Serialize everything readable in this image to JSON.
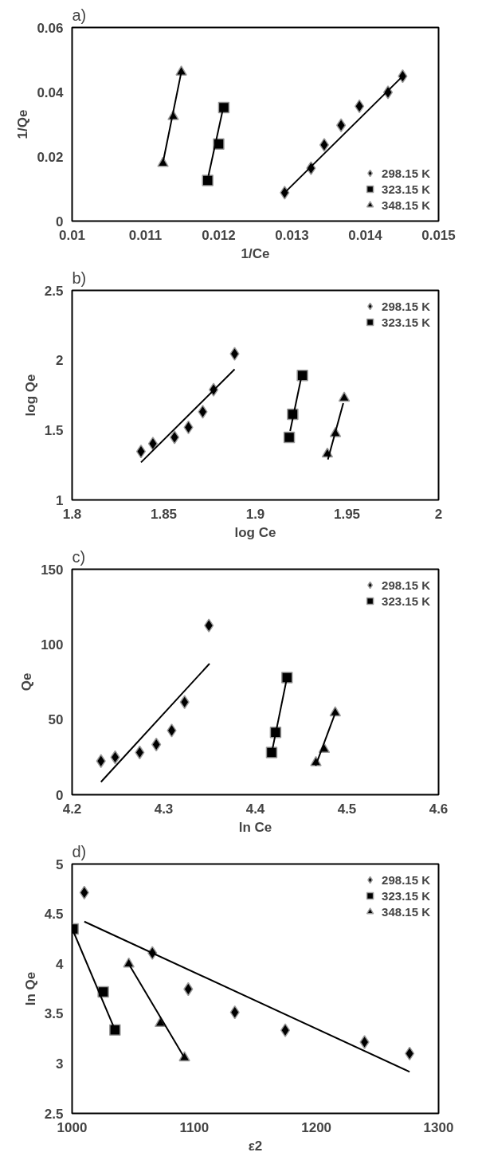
{
  "chart_data": [
    {
      "type": "scatter",
      "title": "a)",
      "xlabel": "1/Ce",
      "ylabel": "1/Qe",
      "xlim": [
        0.01,
        0.015
      ],
      "ylim": [
        0,
        0.06
      ],
      "xticks": [
        0.01,
        0.011,
        0.012,
        0.013,
        0.014,
        0.015
      ],
      "yticks": [
        0,
        0.02,
        0.04,
        0.06
      ],
      "grid": false,
      "legend": "bottom right",
      "series": [
        {
          "name": "298.15 K",
          "color": "#000000",
          "marker": "diamond",
          "x": [
            0.0129,
            0.01326,
            0.01344,
            0.01367,
            0.01392,
            0.01431,
            0.01451
          ],
          "values": [
            0.0088,
            0.0164,
            0.0236,
            0.0297,
            0.0356,
            0.0399,
            0.0449
          ]
        },
        {
          "name": "323.15 K",
          "color": "#000000",
          "marker": "square",
          "x": [
            0.01185,
            0.012,
            0.01207
          ],
          "values": [
            0.0126,
            0.0239,
            0.0352
          ]
        },
        {
          "name": "348.15 K",
          "color": "#000000",
          "marker": "triangle",
          "x": [
            0.01124,
            0.01138,
            0.01149
          ],
          "values": [
            0.0179,
            0.0324,
            0.0462
          ]
        },
        {
          "type": "line",
          "color": "#000000",
          "x": [
            0.0129,
            0.01451
          ],
          "values": [
            0.0088,
            0.0449
          ]
        },
        {
          "type": "line",
          "color": "#000000",
          "x": [
            0.01186,
            0.01206
          ],
          "values": [
            0.014,
            0.0349
          ]
        },
        {
          "type": "line",
          "color": "#000000",
          "x": [
            0.01124,
            0.01149
          ],
          "values": [
            0.0182,
            0.0462
          ]
        }
      ]
    },
    {
      "type": "scatter",
      "title": "b)",
      "xlabel": "log Ce",
      "ylabel": "log Qe",
      "xlim": [
        1.8,
        2
      ],
      "ylim": [
        1,
        2.5
      ],
      "xticks": [
        1.8,
        1.85,
        1.9,
        1.95,
        2
      ],
      "yticks": [
        1,
        1.5,
        2,
        2.5
      ],
      "grid": false,
      "legend": "top right",
      "series": [
        {
          "name": "298.15 K",
          "color": "#000000",
          "marker": "diamond",
          "x": [
            1.8376,
            1.8441,
            1.8559,
            1.8635,
            1.8713,
            1.8772,
            1.8887
          ],
          "values": [
            1.347,
            1.403,
            1.448,
            1.52,
            1.631,
            1.789,
            2.046
          ]
        },
        {
          "name": "323.15 K",
          "color": "#000000",
          "marker": "square",
          "x": [
            1.9185,
            1.9204,
            1.9257
          ],
          "values": [
            1.448,
            1.613,
            1.891
          ]
        },
        {
          "color": "#000000",
          "marker": "triangle",
          "x": [
            1.9393,
            1.9437,
            1.9485
          ],
          "values": [
            1.329,
            1.475,
            1.729
          ]
        },
        {
          "type": "line",
          "color": "#000000",
          "x": [
            1.8376,
            1.8887
          ],
          "values": [
            1.269,
            1.935
          ]
        },
        {
          "type": "line",
          "color": "#000000",
          "x": [
            1.919,
            1.925
          ],
          "values": [
            1.493,
            1.873
          ]
        },
        {
          "type": "line",
          "color": "#000000",
          "x": [
            1.9396,
            1.948
          ],
          "values": [
            1.29,
            1.693
          ]
        }
      ]
    },
    {
      "type": "scatter",
      "title": "c)",
      "xlabel": "ln Ce",
      "ylabel": "Qe",
      "xlim": [
        4.2,
        4.6
      ],
      "ylim": [
        0,
        150
      ],
      "xticks": [
        4.2,
        4.3,
        4.4,
        4.5,
        4.6
      ],
      "yticks": [
        0,
        50,
        100,
        150
      ],
      "grid": false,
      "legend": "top right",
      "series": [
        {
          "name": "298.15 K",
          "color": "#000000",
          "marker": "diamond",
          "x": [
            4.2315,
            4.247,
            4.2738,
            4.2919,
            4.3087,
            4.3228,
            4.3493
          ],
          "values": [
            22.4,
            24.9,
            28.1,
            33.4,
            42.7,
            61.6,
            112.6
          ]
        },
        {
          "name": "323.15 K",
          "color": "#000000",
          "marker": "square",
          "x": [
            4.4178,
            4.4221,
            4.4346
          ],
          "values": [
            28.1,
            41.5,
            77.9
          ]
        },
        {
          "color": "#000000",
          "marker": "triangle",
          "x": [
            4.4661,
            4.4752,
            4.4872
          ],
          "values": [
            21.4,
            30.2,
            54.5
          ]
        },
        {
          "type": "line",
          "color": "#000000",
          "x": [
            4.2315,
            4.35
          ],
          "values": [
            8.5,
            87.2
          ]
        },
        {
          "type": "line",
          "color": "#000000",
          "x": [
            4.4188,
            4.4339
          ],
          "values": [
            30.7,
            75.9
          ]
        },
        {
          "type": "line",
          "color": "#000000",
          "x": [
            4.4658,
            4.4866
          ],
          "values": [
            19.3,
            53.3
          ]
        }
      ]
    },
    {
      "type": "scatter",
      "title": "d)",
      "xlabel": "ε2",
      "ylabel": "ln Qe",
      "xlim": [
        1000,
        1300
      ],
      "ylim": [
        2.5,
        5
      ],
      "xticks": [
        1000,
        1100,
        1200,
        1300
      ],
      "yticks": [
        2.5,
        3,
        3.5,
        4,
        4.5,
        5
      ],
      "grid": false,
      "legend": "top right",
      "series": [
        {
          "name": "298.15 K",
          "color": "#000000",
          "marker": "diamond",
          "x": [
            1010,
            1065.7,
            1095.1,
            1133.2,
            1174.5,
            1239.4,
            1276.3
          ],
          "values": [
            4.713,
            4.109,
            3.746,
            3.513,
            3.333,
            3.215,
            3.1
          ]
        },
        {
          "name": "323.15 K",
          "color": "#000000",
          "marker": "square",
          "x": [
            1000.8,
            1025.5,
            1035.1
          ],
          "values": [
            4.35,
            3.719,
            3.337
          ]
        },
        {
          "name": "348.15 K",
          "color": "#000000",
          "marker": "triangle",
          "x": [
            1046.4,
            1072.2,
            1092
          ],
          "values": [
            3.998,
            3.402,
            3.058
          ]
        },
        {
          "type": "line",
          "color": "#000000",
          "x": [
            1010,
            1276.3
          ],
          "values": [
            4.423,
            2.917
          ]
        },
        {
          "type": "line",
          "color": "#000000",
          "x": [
            1000.8,
            1035.1
          ],
          "values": [
            4.331,
            3.337
          ]
        },
        {
          "type": "line",
          "color": "#000000",
          "x": [
            1046.4,
            1092
          ],
          "values": [
            3.998,
            3.058
          ]
        }
      ]
    }
  ]
}
